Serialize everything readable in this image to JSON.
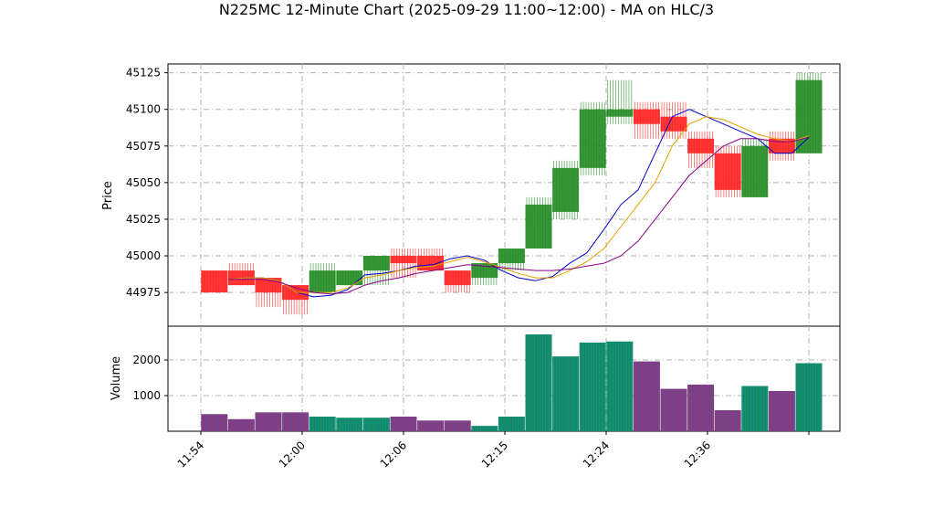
{
  "chart_data": {
    "title": "N225MC 12-Minute Chart (2025-09-29 11:00~12:00) - MA on HLC/3",
    "type": "candlestick",
    "price_panel": {
      "ylabel": "Price",
      "ylim": [
        44952,
        45131
      ],
      "yticks": [
        44975,
        45000,
        45025,
        45050,
        45075,
        45100,
        45125
      ],
      "candles": [
        {
          "o": 44990,
          "h": 44990,
          "l": 44975,
          "c": 44975,
          "color": "red"
        },
        {
          "o": 44990,
          "h": 44995,
          "l": 44980,
          "c": 44980,
          "color": "red"
        },
        {
          "o": 44985,
          "h": 44985,
          "l": 44965,
          "c": 44975,
          "color": "red"
        },
        {
          "o": 44980,
          "h": 44980,
          "l": 44960,
          "c": 44970,
          "color": "red"
        },
        {
          "o": 44975,
          "h": 44995,
          "l": 44975,
          "c": 44990,
          "color": "green"
        },
        {
          "o": 44990,
          "h": 44990,
          "l": 44980,
          "c": 44980,
          "color": "green"
        },
        {
          "o": 44990,
          "h": 45000,
          "l": 44980,
          "c": 45000,
          "color": "green"
        },
        {
          "o": 45000,
          "h": 45005,
          "l": 44985,
          "c": 44995,
          "color": "red"
        },
        {
          "o": 45000,
          "h": 45005,
          "l": 44990,
          "c": 44990,
          "color": "red"
        },
        {
          "o": 44990,
          "h": 44990,
          "l": 44975,
          "c": 44980,
          "color": "red"
        },
        {
          "o": 44985,
          "h": 44995,
          "l": 44980,
          "c": 44995,
          "color": "green"
        },
        {
          "o": 44995,
          "h": 45005,
          "l": 44990,
          "c": 45005,
          "color": "green"
        },
        {
          "o": 45005,
          "h": 45040,
          "l": 45005,
          "c": 45035,
          "color": "green"
        },
        {
          "o": 45030,
          "h": 45065,
          "l": 45025,
          "c": 45060,
          "color": "green"
        },
        {
          "o": 45060,
          "h": 45105,
          "l": 45055,
          "c": 45100,
          "color": "green"
        },
        {
          "o": 45095,
          "h": 45120,
          "l": 45090,
          "c": 45100,
          "color": "green"
        },
        {
          "o": 45100,
          "h": 45105,
          "l": 45080,
          "c": 45090,
          "color": "red"
        },
        {
          "o": 45095,
          "h": 45105,
          "l": 45080,
          "c": 45085,
          "color": "red"
        },
        {
          "o": 45080,
          "h": 45085,
          "l": 45060,
          "c": 45070,
          "color": "red"
        },
        {
          "o": 45070,
          "h": 45075,
          "l": 45040,
          "c": 45045,
          "color": "red"
        },
        {
          "o": 45040,
          "h": 45080,
          "l": 45040,
          "c": 45075,
          "color": "green"
        },
        {
          "o": 45080,
          "h": 45085,
          "l": 45065,
          "c": 45070,
          "color": "red"
        },
        {
          "o": 45070,
          "h": 45125,
          "l": 45070,
          "c": 45120,
          "color": "green"
        }
      ],
      "ma_lines": [
        {
          "color": "#0000cc",
          "points": [
            [
              0,
              44984
            ],
            [
              1,
              44985
            ],
            [
              2,
              44985
            ],
            [
              3,
              44983
            ],
            [
              4,
              44975
            ],
            [
              5,
              44972
            ],
            [
              6,
              44973
            ],
            [
              7,
              44977
            ],
            [
              8,
              44987
            ],
            [
              9,
              44988
            ],
            [
              10,
              44990
            ],
            [
              11,
              44993
            ],
            [
              12,
              44994
            ],
            [
              13,
              44998
            ],
            [
              14,
              45000
            ],
            [
              15,
              44997
            ],
            [
              16,
              44990
            ],
            [
              17,
              44985
            ],
            [
              18,
              44983
            ],
            [
              19,
              44986
            ],
            [
              20,
              44995
            ],
            [
              21,
              45002
            ],
            [
              22,
              45018
            ],
            [
              23,
              45035
            ],
            [
              24,
              45045
            ],
            [
              25,
              45070
            ],
            [
              26,
              45095
            ],
            [
              27,
              45100
            ],
            [
              28,
              45095
            ],
            [
              29,
              45090
            ],
            [
              30,
              45085
            ],
            [
              31,
              45080
            ],
            [
              32,
              45070
            ],
            [
              33,
              45070
            ],
            [
              34,
              45081
            ]
          ]
        },
        {
          "color": "#e6a000",
          "points": [
            [
              0,
              44984
            ],
            [
              1,
              44985
            ],
            [
              2,
              44985
            ],
            [
              3,
              44983
            ],
            [
              4,
              44975
            ],
            [
              5,
              44975
            ],
            [
              6,
              44975
            ],
            [
              7,
              44978
            ],
            [
              8,
              44985
            ],
            [
              9,
              44987
            ],
            [
              10,
              44990
            ],
            [
              11,
              44992
            ],
            [
              12,
              44993
            ],
            [
              13,
              44996
            ],
            [
              14,
              44999
            ],
            [
              15,
              44996
            ],
            [
              16,
              44992
            ],
            [
              17,
              44988
            ],
            [
              18,
              44985
            ],
            [
              19,
              44985
            ],
            [
              20,
              44990
            ],
            [
              21,
              44996
            ],
            [
              22,
              45005
            ],
            [
              23,
              45020
            ],
            [
              24,
              45035
            ],
            [
              25,
              45050
            ],
            [
              26,
              45075
            ],
            [
              27,
              45090
            ],
            [
              28,
              45095
            ],
            [
              29,
              45093
            ],
            [
              30,
              45088
            ],
            [
              31,
              45083
            ],
            [
              32,
              45080
            ],
            [
              33,
              45078
            ],
            [
              34,
              45082
            ]
          ]
        },
        {
          "color": "#880088",
          "points": [
            [
              0,
              44984
            ],
            [
              1,
              44984
            ],
            [
              2,
              44984
            ],
            [
              3,
              44982
            ],
            [
              4,
              44978
            ],
            [
              5,
              44975
            ],
            [
              6,
              44974
            ],
            [
              7,
              44975
            ],
            [
              8,
              44980
            ],
            [
              9,
              44983
            ],
            [
              10,
              44985
            ],
            [
              11,
              44988
            ],
            [
              12,
              44990
            ],
            [
              13,
              44992
            ],
            [
              14,
              44994
            ],
            [
              15,
              44993
            ],
            [
              16,
              44992
            ],
            [
              17,
              44991
            ],
            [
              18,
              44990
            ],
            [
              19,
              44990
            ],
            [
              20,
              44991
            ],
            [
              21,
              44993
            ],
            [
              22,
              44995
            ],
            [
              23,
              45000
            ],
            [
              24,
              45010
            ],
            [
              25,
              45025
            ],
            [
              26,
              45040
            ],
            [
              27,
              45055
            ],
            [
              28,
              45065
            ],
            [
              29,
              45075
            ],
            [
              30,
              45080
            ],
            [
              31,
              45080
            ],
            [
              32,
              45078
            ],
            [
              33,
              45078
            ],
            [
              34,
              45081
            ]
          ]
        }
      ]
    },
    "volume_panel": {
      "ylabel": "Volume",
      "ylim": [
        0,
        2950
      ],
      "yticks": [
        1000,
        2000
      ],
      "values": [
        480,
        340,
        530,
        530,
        410,
        380,
        380,
        410,
        300,
        300,
        150,
        410,
        2720,
        2100,
        2490,
        2520,
        1960,
        1190,
        1310,
        590,
        1270,
        1130,
        1910
      ]
    },
    "x_ticks": [
      "11:54",
      "12:00",
      "12:06",
      "12:15",
      "12:24",
      "12:36",
      ""
    ]
  }
}
